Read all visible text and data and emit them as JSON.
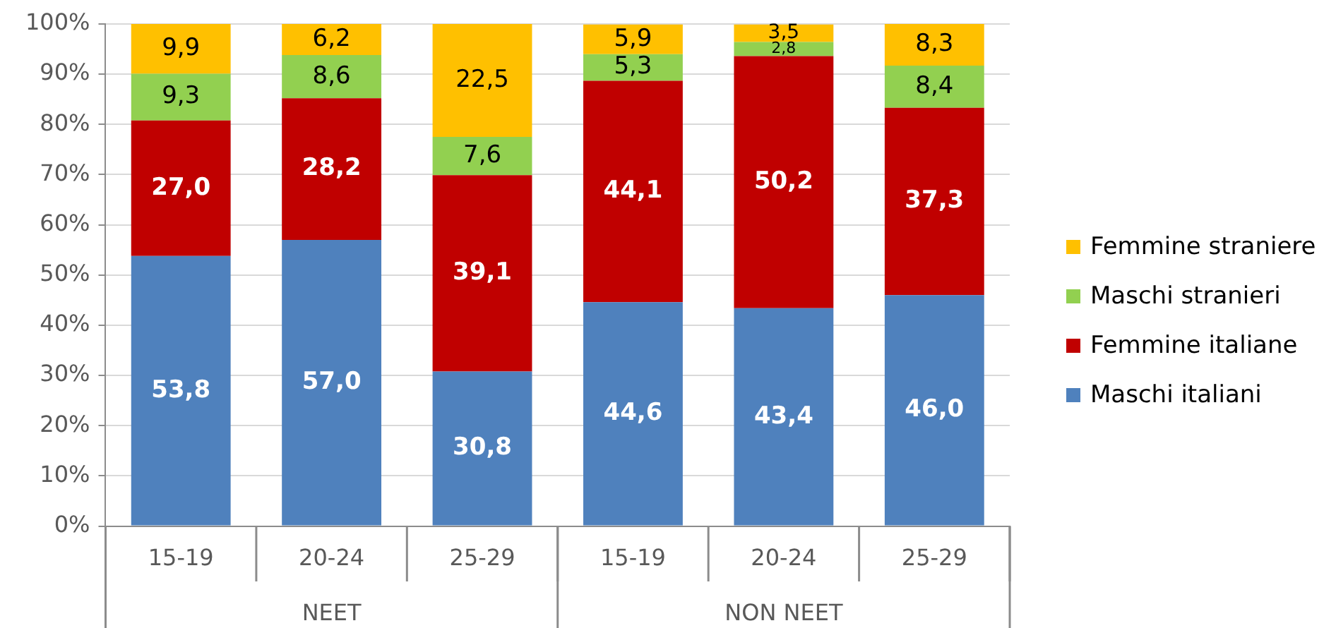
{
  "chart_data": {
    "type": "bar",
    "stacked": true,
    "categories": [
      "15-19",
      "20-24",
      "25-29",
      "15-19",
      "20-24",
      "25-29"
    ],
    "series": [
      {
        "name": "Maschi italiani",
        "color": "#4f81bd",
        "values": [
          53.8,
          57.0,
          30.8,
          44.6,
          43.4,
          46.0
        ],
        "value_labels": [
          "53,8",
          "57,0",
          "30,8",
          "44,6",
          "43,4",
          "46,0"
        ]
      },
      {
        "name": "Femmine italiane",
        "color": "#c00000",
        "values": [
          27.0,
          28.2,
          39.1,
          44.1,
          50.2,
          37.3
        ],
        "value_labels": [
          "27,0",
          "28,2",
          "39,1",
          "44,1",
          "50,2",
          "37,3"
        ]
      },
      {
        "name": "Maschi stranieri",
        "color": "#92d050",
        "values": [
          9.3,
          8.6,
          7.6,
          5.3,
          2.8,
          8.4
        ],
        "value_labels": [
          "9,3",
          "8,6",
          "7,6",
          "5,3",
          "2,8",
          "8,4"
        ]
      },
      {
        "name": "Femmine straniere",
        "color": "#ffc000",
        "values": [
          9.9,
          6.2,
          22.5,
          5.9,
          3.5,
          8.3
        ],
        "value_labels": [
          "9,9",
          "6,2",
          "22,5",
          "5,9",
          "3,5",
          "8,3"
        ]
      }
    ],
    "ylim": [
      0,
      100
    ],
    "yticks": [
      {
        "value": 0,
        "label": "0%"
      },
      {
        "value": 10,
        "label": "10%"
      },
      {
        "value": 20,
        "label": "20%"
      },
      {
        "value": 30,
        "label": "30%"
      },
      {
        "value": 40,
        "label": "40%"
      },
      {
        "value": 50,
        "label": "50%"
      },
      {
        "value": 60,
        "label": "60%"
      },
      {
        "value": 70,
        "label": "70%"
      },
      {
        "value": 80,
        "label": "80%"
      },
      {
        "value": 90,
        "label": "90%"
      },
      {
        "value": 100,
        "label": "100%"
      }
    ],
    "grid": "y",
    "legend": "right",
    "annotations": [
      "NEET",
      "NON NEET"
    ]
  }
}
